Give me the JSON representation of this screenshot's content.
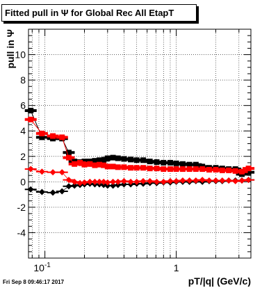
{
  "title": "Fitted pull in  Ψ  for Global Rec All EtapT",
  "timestamp": "Fri Sep  8 09:46:17 2017",
  "colors": {
    "black_series": "#000000",
    "red_series": "#ff0000",
    "grid": "#000000",
    "background": "#ffffff"
  },
  "chart_data": {
    "type": "scatter",
    "title": "Fitted pull in  Ψ  for Global Rec All EtapT",
    "xlabel": "pT/|q| (GeV/c)",
    "ylabel": "pull in  Ψ",
    "xscale": "log",
    "xlim": [
      0.075,
      3.7
    ],
    "ylim": [
      -6,
      12
    ],
    "grid": true,
    "legend": "none",
    "x_ticks": [
      {
        "value": 0.1,
        "label": "10",
        "exp": "-1"
      },
      {
        "value": 1,
        "label": "1"
      }
    ],
    "y_ticks": [
      -4,
      -2,
      0,
      2,
      4,
      6,
      8,
      10
    ],
    "series": [
      {
        "color": "#000000",
        "marker": "square",
        "role": "width",
        "x": [
          0.078,
          0.095,
          0.115,
          0.135,
          0.152,
          0.168,
          0.185,
          0.2,
          0.22,
          0.24,
          0.26,
          0.28,
          0.3,
          0.33,
          0.36,
          0.4,
          0.45,
          0.5,
          0.56,
          0.63,
          0.71,
          0.8,
          0.9,
          1.0,
          1.12,
          1.26,
          1.41,
          1.58,
          1.78,
          2.0,
          2.24,
          2.51,
          2.82,
          3.16,
          3.55
        ],
        "y": [
          5.6,
          3.5,
          3.4,
          3.4,
          2.3,
          1.6,
          1.55,
          1.6,
          1.6,
          1.65,
          1.7,
          1.7,
          1.85,
          1.9,
          1.85,
          1.8,
          1.75,
          1.7,
          1.7,
          1.6,
          1.55,
          1.5,
          1.5,
          1.45,
          1.4,
          1.35,
          1.35,
          1.2,
          1.1,
          1.1,
          1.05,
          1.0,
          1.0,
          0.6,
          0.75
        ]
      },
      {
        "color": "#ff0000",
        "marker": "square",
        "role": "width",
        "x": [
          0.078,
          0.095,
          0.115,
          0.135,
          0.152,
          0.168,
          0.185,
          0.2,
          0.22,
          0.24,
          0.26,
          0.28,
          0.3,
          0.33,
          0.36,
          0.4,
          0.45,
          0.5,
          0.56,
          0.63,
          0.71,
          0.8,
          0.9,
          1.0,
          1.12,
          1.26,
          1.41,
          1.58,
          1.78,
          2.0,
          2.24,
          2.51,
          2.82,
          3.16,
          3.55
        ],
        "y": [
          4.9,
          3.8,
          3.6,
          3.5,
          1.9,
          1.4,
          1.5,
          1.35,
          1.4,
          1.3,
          1.35,
          1.3,
          1.2,
          1.2,
          1.15,
          1.15,
          1.1,
          1.1,
          1.1,
          1.05,
          1.05,
          1.0,
          1.0,
          1.0,
          1.0,
          1.0,
          1.0,
          1.0,
          0.95,
          0.95,
          0.9,
          0.9,
          0.85,
          0.8,
          1.05
        ]
      },
      {
        "color": "#000000",
        "marker": "diamond",
        "role": "mean",
        "x": [
          0.078,
          0.095,
          0.115,
          0.135,
          0.152,
          0.168,
          0.185,
          0.2,
          0.22,
          0.24,
          0.26,
          0.28,
          0.3,
          0.33,
          0.36,
          0.4,
          0.45,
          0.5,
          0.56,
          0.63,
          0.71,
          0.8,
          0.9,
          1.0,
          1.12,
          1.26,
          1.41,
          1.58,
          1.78,
          2.0,
          2.24,
          2.51,
          2.82,
          3.16,
          3.55
        ],
        "y": [
          -0.6,
          -0.8,
          -0.85,
          -0.75,
          -0.35,
          -0.3,
          -0.25,
          -0.2,
          -0.15,
          -0.2,
          -0.2,
          -0.25,
          -0.3,
          -0.3,
          -0.25,
          -0.2,
          -0.2,
          -0.15,
          -0.15,
          -0.1,
          -0.1,
          -0.05,
          -0.05,
          0.0,
          0.0,
          0.0,
          0.05,
          0.0,
          0.05,
          0.05,
          0.05,
          0.1,
          0.1,
          0.1,
          0.15
        ]
      },
      {
        "color": "#ff0000",
        "marker": "diamond",
        "role": "mean",
        "x": [
          0.078,
          0.095,
          0.115,
          0.135,
          0.152,
          0.168,
          0.185,
          0.2,
          0.22,
          0.24,
          0.26,
          0.28,
          0.3,
          0.33,
          0.36,
          0.4,
          0.45,
          0.5,
          0.56,
          0.63,
          0.71,
          0.8,
          0.9,
          1.0,
          1.12,
          1.26,
          1.41,
          1.58,
          1.78,
          2.0,
          2.24,
          2.51,
          2.82,
          3.16,
          3.55
        ],
        "y": [
          1.0,
          0.8,
          0.75,
          0.75,
          0.15,
          0.0,
          -0.1,
          -0.05,
          0.0,
          0.0,
          0.0,
          0.0,
          -0.05,
          0.0,
          0.0,
          0.05,
          0.0,
          0.0,
          0.05,
          0.05,
          0.0,
          0.0,
          0.05,
          0.05,
          0.1,
          0.1,
          0.1,
          0.15,
          0.1,
          0.1,
          0.1,
          0.1,
          0.05,
          0.1,
          0.15
        ]
      }
    ]
  }
}
